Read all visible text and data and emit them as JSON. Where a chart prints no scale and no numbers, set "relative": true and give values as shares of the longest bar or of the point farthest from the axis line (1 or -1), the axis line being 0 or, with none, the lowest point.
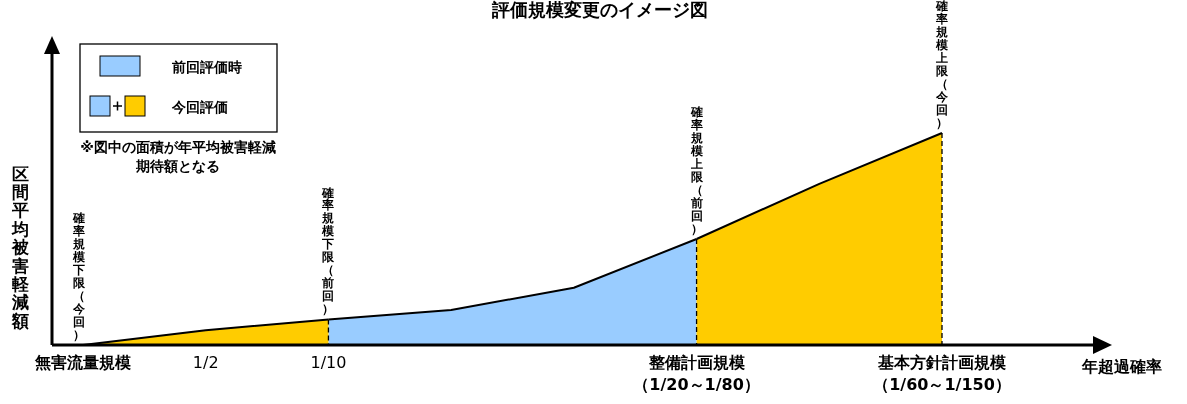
{
  "chart_data": {
    "type": "area",
    "title": "評価規模変更のイメージ図",
    "xlabel": "年超過確率",
    "ylabel": "区間平均被害軽減額",
    "relative": true,
    "categories": [
      "無害流量規模",
      "1/2",
      "1/10",
      null,
      null,
      "整備計画規模（1/20～1/80）",
      null,
      "基本方針計画規模（1/60～1/150）"
    ],
    "series": [
      {
        "name": "前回評価時",
        "color": "#99ccff",
        "values": [
          null,
          null,
          0.12,
          0.165,
          0.27,
          0.5,
          null,
          null
        ]
      },
      {
        "name": "今回評価",
        "color": "#ffcc00",
        "values": [
          0,
          0.07,
          0.12,
          null,
          null,
          0.5,
          0.76,
          1
        ]
      }
    ],
    "ref_lines": [
      {
        "axis": "x",
        "value": "1/10",
        "label": "確率規模下限（前回）",
        "line_style": "dashed"
      },
      {
        "axis": "x",
        "value": "整備計画規模（1/20～1/80）",
        "label": "確率規模上限（前回）",
        "line_style": "dashed"
      },
      {
        "axis": "x",
        "value": "基本方針計画規模（1/60～1/150）",
        "label": "確率規模上限（今回）",
        "line_style": "dashed"
      }
    ],
    "annotations": [
      "※図中の面積が年平均被害軽減期待額となる",
      "確率規模下限（今回）"
    ],
    "legend": "top left"
  }
}
